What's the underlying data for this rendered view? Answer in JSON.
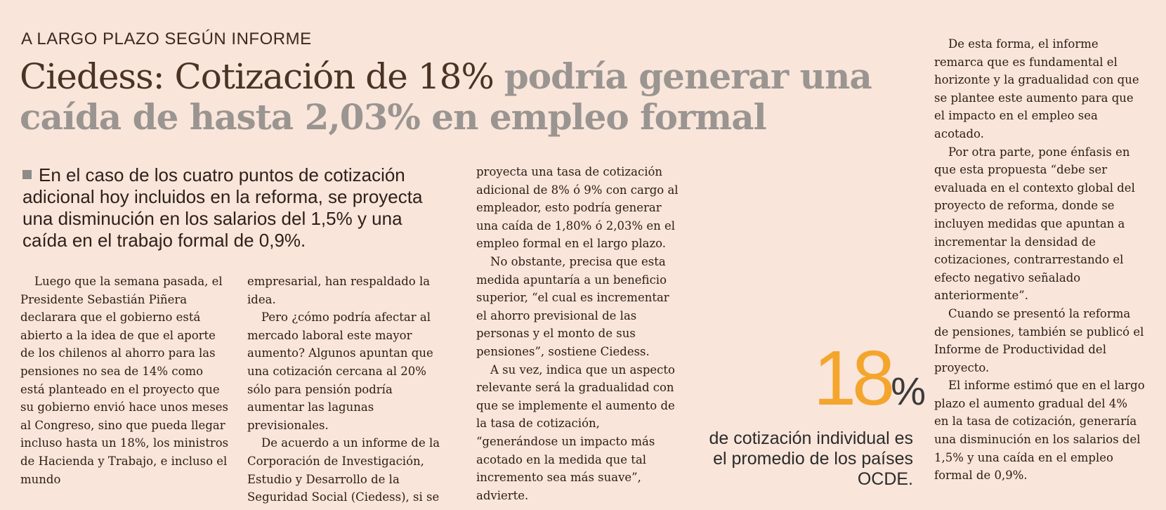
{
  "kicker": "A LARGO PLAZO SEGÚN INFORME",
  "headline": {
    "part_dark": "Ciedess: Cotización de 18% ",
    "part_gray": "podría generar una caída de hasta 2,03% en empleo formal"
  },
  "summary": "En el caso de los cuatro puntos de cotización adicional hoy incluidos en la reforma, se proyecta una disminución en los salarios del 1,5% y una caída en el trabajo formal de 0,9%.",
  "column1": [
    "Luego que la semana pasada, el Presidente Sebastián Piñera declarara que el gobierno está abierto a la idea de que el aporte de los chilenos al ahorro para las pensiones no sea de 14% como está planteado en el proyecto que su gobierno envió hace unos meses al Congreso, sino que pueda llegar incluso hasta un 18%, los ministros de Hacienda y Trabajo, e incluso el mundo"
  ],
  "column2": [
    "empresarial, han respaldado la idea.",
    "Pero ¿cómo podría afectar al mercado laboral este mayor aumento? Algunos apuntan que una cotización cercana al 20% sólo para pensión podría aumentar las lagunas previsionales.",
    "De acuerdo a un informe de la Corporación de Investigación, Estudio y Desarrollo de la Seguridad Social (Ciedess), si se"
  ],
  "column3": [
    "proyecta una tasa de cotización adicional de 8% ó 9% con cargo al empleador, esto podría generar una caída de 1,80% ó 2,03% en el empleo formal en el largo plazo.",
    "No obstante, precisa que esta medida apuntaría a un beneficio superior, “el cual es incrementar el ahorro previsional de las personas y el monto de sus pensiones”, sostiene Ciedess.",
    "A su vez, indica que un aspecto relevante será la gradualidad con que se implemente el aumento de la tasa de cotización, “generándose un impacto más acotado en la medida que tal incremento sea más suave”, advierte."
  ],
  "column4": [
    "De esta forma, el informe remarca que es fundamental el horizonte y la gradualidad con que se plantee este aumento para que el impacto en el empleo sea acotado.",
    "Por otra parte, pone énfasis en que esta propuesta “debe ser evaluada en el contexto global del proyecto de reforma, donde se incluyen medidas que apuntan a incrementar la densidad de cotizaciones, contrarrestando el efecto negativo señalado anteriormente”.",
    "Cuando se presentó la reforma de pensiones, también se publicó el Informe de Productividad del proyecto.",
    "El informe estimó que en el largo plazo el aumento gradual del 4% en la tasa de cotización, generaría una disminución en los salarios del 1,5% y una caída en el empleo formal de 0,9%."
  ],
  "callout": {
    "number": "18",
    "unit": "%",
    "text": "de cotización individual es el promedio de los países OCDE."
  },
  "colors": {
    "background": "#f9e5da",
    "accent": "#f4a52c",
    "headline_gray": "#9a9591"
  }
}
